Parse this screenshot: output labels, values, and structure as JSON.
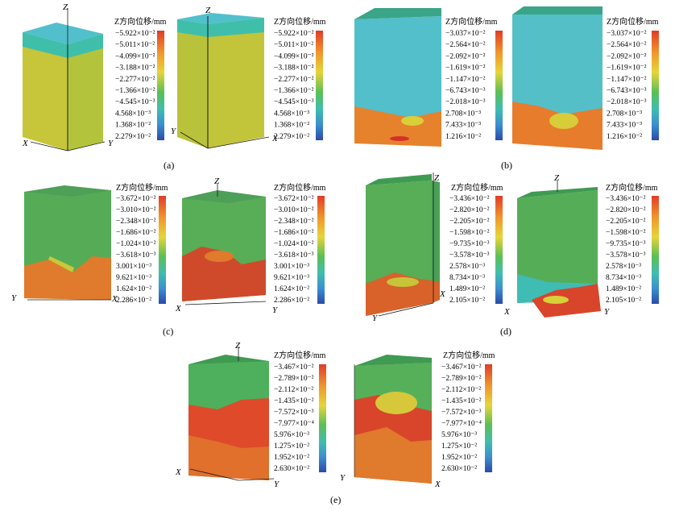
{
  "legend_title": "Z方向位移/mm",
  "panels": [
    {
      "id": "a",
      "caption": "(a)",
      "legend": [
        "−5.922×10⁻²",
        "−5.011×10⁻²",
        "−4.099×10⁻²",
        "−3.188×10⁻²",
        "−2.277×10⁻²",
        "−1.366×10⁻²",
        "−4.545×10⁻³",
        "4.568×10⁻³",
        "1.368×10⁻²",
        "2.279×10⁻²"
      ],
      "views": [
        {
          "axes": [
            "Z",
            "X",
            "Y"
          ]
        },
        {
          "axes": [
            "Z",
            "Y",
            "X"
          ]
        }
      ]
    },
    {
      "id": "b",
      "caption": "(b)",
      "legend": [
        "−3.037×10⁻²",
        "−2.564×10⁻²",
        "−2.092×10⁻²",
        "−1.619×10⁻²",
        "−1.147×10⁻²",
        "−6.743×10⁻³",
        "−2.018×10⁻³",
        "2.708×10⁻³",
        "7.433×10⁻³",
        "1.216×10⁻²"
      ],
      "views": [
        {
          "axes": []
        },
        {
          "axes": []
        }
      ]
    },
    {
      "id": "c",
      "caption": "(c)",
      "legend": [
        "−3.672×10⁻²",
        "−3.010×10⁻²",
        "−2.348×10⁻²",
        "−1.686×10⁻²",
        "−1.024×10⁻²",
        "−3.618×10⁻³",
        "3.001×10⁻³",
        "9.621×10⁻³",
        "1.624×10⁻²",
        "2.286×10⁻²"
      ],
      "views": [
        {
          "axes": [
            "Y",
            "X"
          ]
        },
        {
          "axes": [
            "Z",
            "X",
            "Y"
          ]
        }
      ]
    },
    {
      "id": "d",
      "caption": "(d)",
      "legend": [
        "−3.436×10⁻²",
        "−2.820×10⁻²",
        "−2.205×10⁻²",
        "−1.598×10⁻²",
        "−9.735×10⁻³",
        "−3.578×10⁻³",
        "2.578×10⁻³",
        "8.734×10⁻³",
        "1.489×10⁻²",
        "2.105×10⁻²"
      ],
      "views": [
        {
          "axes": [
            "Z",
            "Y",
            "X"
          ]
        },
        {
          "axes": [
            "Z",
            "X",
            "Y"
          ]
        }
      ]
    },
    {
      "id": "e",
      "caption": "(e)",
      "legend": [
        "−3.467×10⁻²",
        "−2.789×10⁻²",
        "−2.112×10⁻²",
        "−1.435×10⁻²",
        "−7.572×10⁻³",
        "−7.977×10⁻⁴",
        "5.976×10⁻³",
        "1.275×10⁻²",
        "1.952×10⁻²",
        "2.630×10⁻²"
      ],
      "views": [
        {
          "axes": [
            "Z",
            "X",
            "Y"
          ]
        },
        {
          "axes": [
            "Y",
            "X"
          ]
        }
      ]
    }
  ],
  "colors": {
    "red": "#d8452a",
    "orange": "#e8812f",
    "yellow": "#d8cf3a",
    "yellowgreen": "#a5c23c",
    "green": "#55ad55",
    "teal": "#3fbfaa",
    "cyan": "#52c0cc",
    "blue": "#2f5fb6"
  }
}
